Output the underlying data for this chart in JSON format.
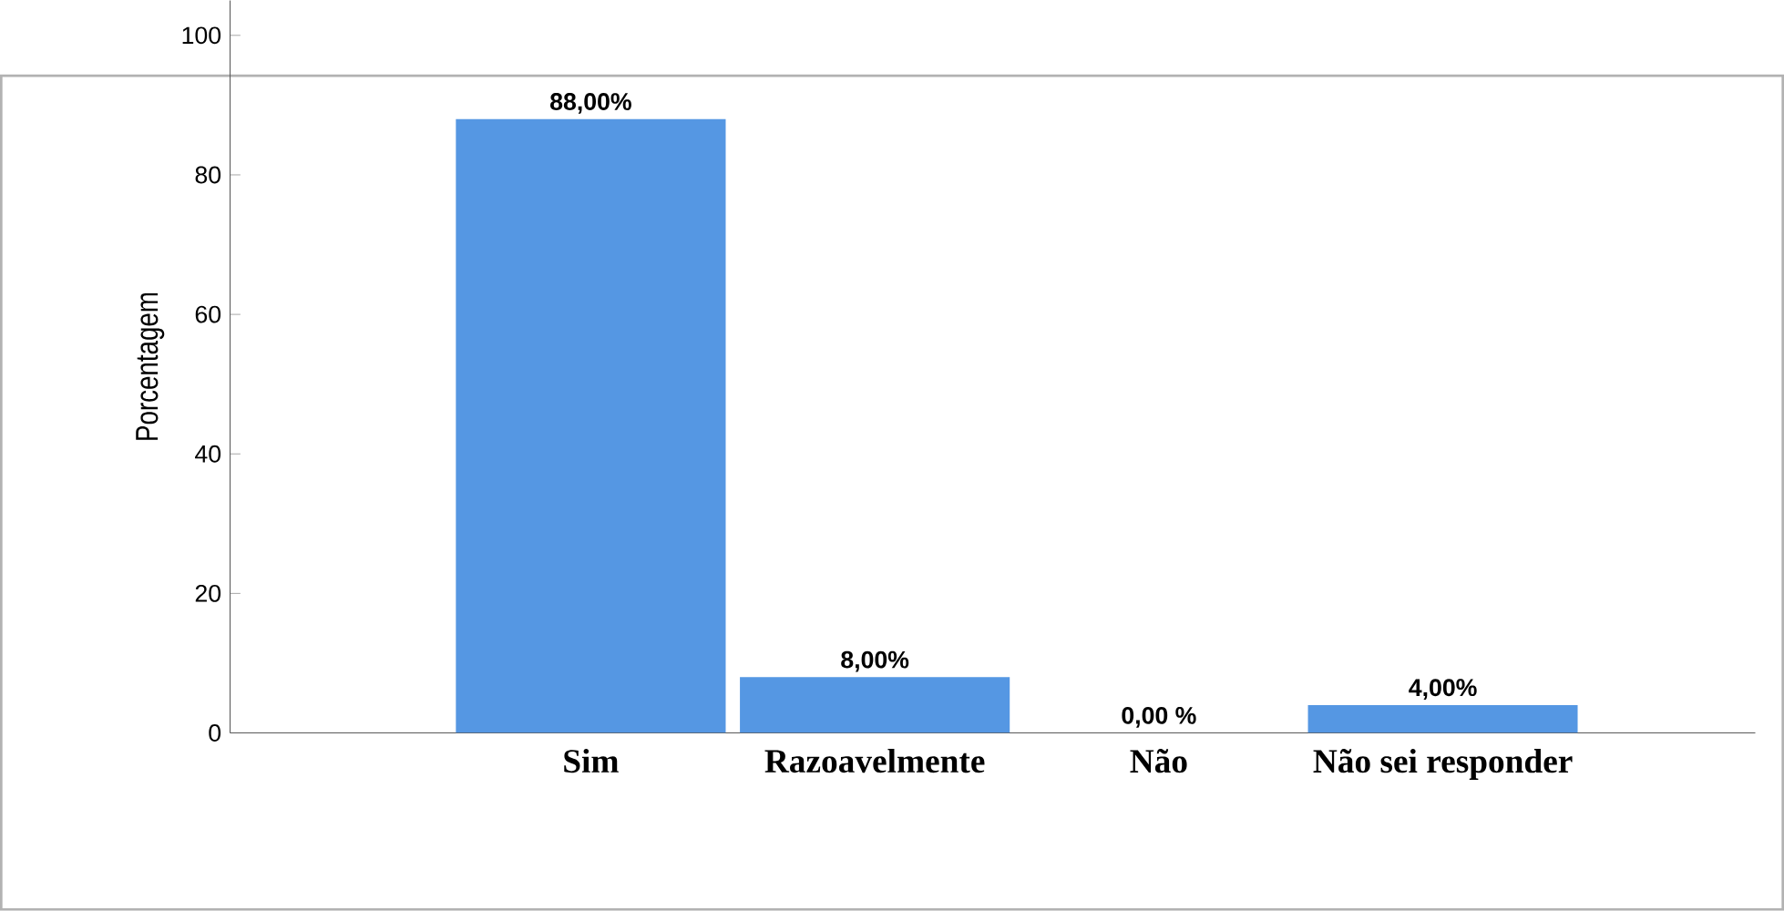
{
  "chart_data": {
    "type": "bar",
    "ylabel": "Porcentagem",
    "categories": [
      "Sim",
      "Razoavelmente",
      "Não",
      "Não sei responder"
    ],
    "values": [
      88,
      8,
      0,
      4
    ],
    "value_labels": [
      "88,00%",
      "8,00%",
      "0,00 %",
      "4,00%"
    ],
    "color": "#5597e3",
    "ylim": [
      0,
      105
    ],
    "yticks": [
      0,
      20,
      40,
      60,
      80,
      100
    ],
    "grid": false
  }
}
